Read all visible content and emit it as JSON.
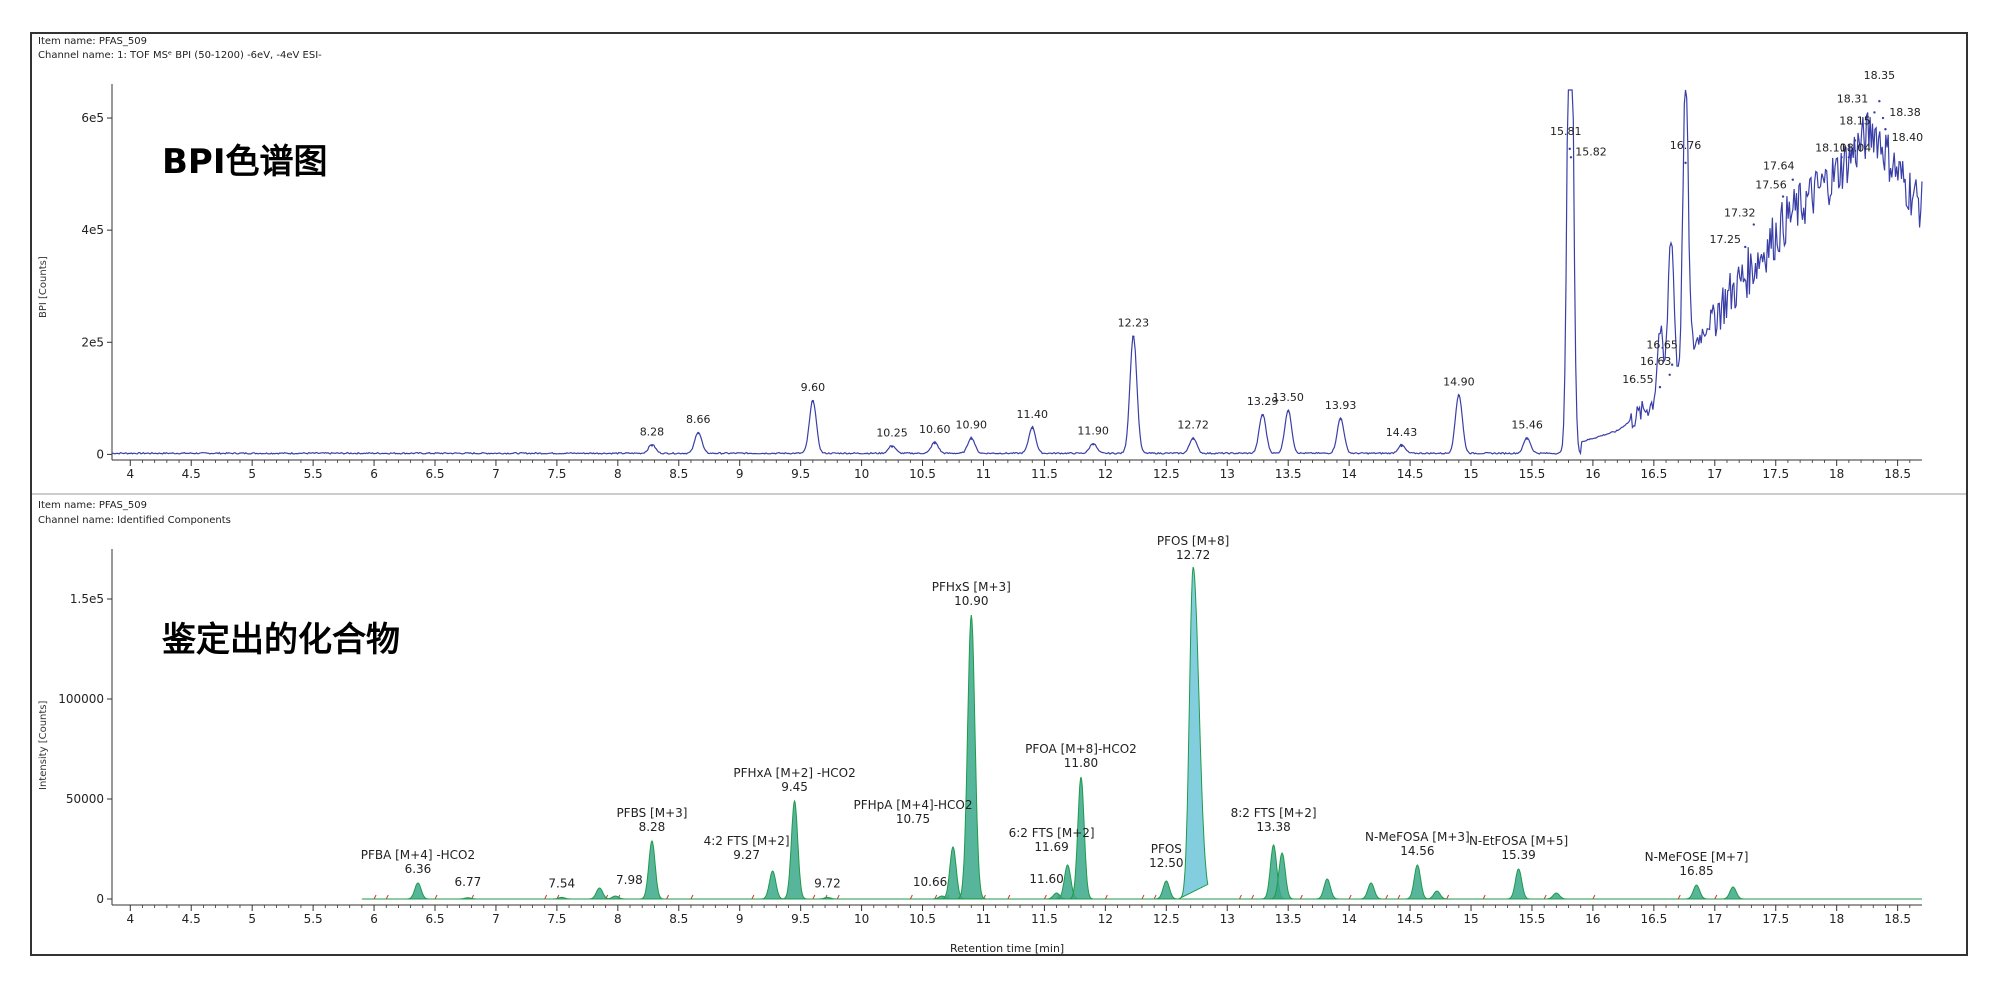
{
  "top_panel": {
    "item_name": "Item name: PFAS_509",
    "channel_name": "Channel name: 1: TOF MSᵉ BPI (50-1200) -6eV, -4eV ESI-",
    "overlay_title": "BPI色谱图",
    "ylabel": "BPI [Counts]"
  },
  "bottom_panel": {
    "item_name": "Item name: PFAS_509",
    "channel_name": "Channel name: Identified Components",
    "overlay_title": "鉴定出的化合物",
    "ylabel": "Intensity [Counts]",
    "xlabel": "Retention time [min]"
  },
  "colors": {
    "bpi_line": "#3a3fa8",
    "component_stroke": "#1f9a4a",
    "component_fill": "#3aa88a",
    "main_peak_fill": "#6cc4d8",
    "noise_red": "#d03a2a",
    "axis": "#333333"
  },
  "chart_data": [
    {
      "type": "line",
      "name": "BPI",
      "xlim": [
        3.85,
        18.7
      ],
      "ylim": [
        -10000,
        650000
      ],
      "xticks": [
        "4",
        "4.5",
        "5",
        "5.5",
        "6",
        "6.5",
        "7",
        "7.5",
        "8",
        "8.5",
        "9",
        "9.5",
        "10",
        "10.5",
        "11",
        "11.5",
        "12",
        "12.5",
        "13",
        "13.5",
        "14",
        "14.5",
        "15",
        "15.5",
        "16",
        "16.5",
        "17",
        "17.5",
        "18",
        "18.5"
      ],
      "yticks": [
        {
          "value": 0,
          "label": "0"
        },
        {
          "value": 200000,
          "label": "2e5"
        },
        {
          "value": 400000,
          "label": "4e5"
        },
        {
          "value": 600000,
          "label": "6e5"
        }
      ],
      "peaks": [
        {
          "x": 8.28,
          "y": 16000,
          "label": "8.28"
        },
        {
          "x": 8.66,
          "y": 38000,
          "label": "8.66"
        },
        {
          "x": 9.6,
          "y": 95000,
          "label": "9.60"
        },
        {
          "x": 10.25,
          "y": 14000,
          "label": "10.25"
        },
        {
          "x": 10.6,
          "y": 20000,
          "label": "10.60"
        },
        {
          "x": 10.9,
          "y": 28000,
          "label": "10.90"
        },
        {
          "x": 11.4,
          "y": 47000,
          "label": "11.40"
        },
        {
          "x": 11.9,
          "y": 18000,
          "label": "11.90"
        },
        {
          "x": 12.23,
          "y": 210000,
          "label": "12.23"
        },
        {
          "x": 12.72,
          "y": 28000,
          "label": "12.72"
        },
        {
          "x": 13.29,
          "y": 70000,
          "label": "13.29"
        },
        {
          "x": 13.5,
          "y": 77000,
          "label": "13.50"
        },
        {
          "x": 13.93,
          "y": 63000,
          "label": "13.93"
        },
        {
          "x": 14.43,
          "y": 15000,
          "label": "14.43"
        },
        {
          "x": 14.9,
          "y": 105000,
          "label": "14.90"
        },
        {
          "x": 15.46,
          "y": 28000,
          "label": "15.46"
        },
        {
          "x": 15.81,
          "y": 545000,
          "label": "15.81"
        },
        {
          "x": 15.82,
          "y": 530000,
          "label": "15.82"
        },
        {
          "x": 16.55,
          "y": 120000,
          "label": "16.55"
        },
        {
          "x": 16.63,
          "y": 142000,
          "label": "16.63"
        },
        {
          "x": 16.65,
          "y": 160000,
          "label": "16.65"
        },
        {
          "x": 16.76,
          "y": 520000,
          "label": "16.76"
        },
        {
          "x": 17.25,
          "y": 370000,
          "label": "17.25"
        },
        {
          "x": 17.32,
          "y": 410000,
          "label": "17.32"
        },
        {
          "x": 17.56,
          "y": 460000,
          "label": "17.56"
        },
        {
          "x": 17.64,
          "y": 490000,
          "label": "17.64"
        },
        {
          "x": 18.1,
          "y": 530000,
          "label": "18.10"
        },
        {
          "x": 18.04,
          "y": 530000,
          "label": "18.04"
        },
        {
          "x": 18.15,
          "y": 560000,
          "label": "18.15"
        },
        {
          "x": 18.31,
          "y": 610000,
          "label": "18.31"
        },
        {
          "x": 18.35,
          "y": 630000,
          "label": "18.35"
        },
        {
          "x": 18.38,
          "y": 600000,
          "label": "18.38"
        },
        {
          "x": 18.4,
          "y": 580000,
          "label": "18.40"
        }
      ],
      "baseline_ramp": [
        [
          15.9,
          20000
        ],
        [
          16.2,
          40000
        ],
        [
          16.5,
          90000
        ],
        [
          16.7,
          130000
        ],
        [
          16.85,
          200000
        ],
        [
          17.0,
          250000
        ],
        [
          17.3,
          330000
        ],
        [
          17.6,
          420000
        ],
        [
          18.0,
          500000
        ],
        [
          18.3,
          580000
        ],
        [
          18.5,
          500000
        ],
        [
          18.7,
          440000
        ]
      ]
    },
    {
      "type": "area",
      "name": "Identified Components",
      "xlim": [
        3.85,
        18.7
      ],
      "ylim": [
        -3000,
        172000
      ],
      "xlabel": "Retention time [min]",
      "xticks": [
        "4",
        "4.5",
        "5",
        "5.5",
        "6",
        "6.5",
        "7",
        "7.5",
        "8",
        "8.5",
        "9",
        "9.5",
        "10",
        "10.5",
        "11",
        "11.5",
        "12",
        "12.5",
        "13",
        "13.5",
        "14",
        "14.5",
        "15",
        "15.5",
        "16",
        "16.5",
        "17",
        "17.5",
        "18",
        "18.5"
      ],
      "yticks": [
        {
          "value": 0,
          "label": "0"
        },
        {
          "value": 50000,
          "label": "50000"
        },
        {
          "value": 100000,
          "label": "100000"
        },
        {
          "value": 150000,
          "label": "1.5e5"
        }
      ],
      "peaks": [
        {
          "x": 6.36,
          "y": 8000,
          "name": "PFBA [M+4] -HCO2",
          "rt": "6.36"
        },
        {
          "x": 6.77,
          "y": 600,
          "name": "",
          "rt": "6.77"
        },
        {
          "x": 7.54,
          "y": 800,
          "name": "",
          "rt": "7.54"
        },
        {
          "x": 7.85,
          "y": 5500,
          "name": "",
          "rt": ""
        },
        {
          "x": 7.98,
          "y": 1500,
          "name": "",
          "rt": "7.98"
        },
        {
          "x": 8.28,
          "y": 29000,
          "name": "PFBS [M+3]",
          "rt": "8.28"
        },
        {
          "x": 9.27,
          "y": 14000,
          "name": "4:2 FTS [M+2]",
          "rt": "9.27"
        },
        {
          "x": 9.45,
          "y": 49000,
          "name": "PFHxA [M+2] -HCO2",
          "rt": "9.45"
        },
        {
          "x": 9.72,
          "y": 800,
          "name": "",
          "rt": "9.72"
        },
        {
          "x": 10.66,
          "y": 1500,
          "name": "",
          "rt": "10.66"
        },
        {
          "x": 10.75,
          "y": 26000,
          "name": "PFHpA [M+4]-HCO2",
          "rt": "10.75"
        },
        {
          "x": 10.9,
          "y": 142000,
          "name": "PFHxS [M+3]",
          "rt": "10.90"
        },
        {
          "x": 11.6,
          "y": 3000,
          "name": "",
          "rt": "11.60"
        },
        {
          "x": 11.69,
          "y": 17000,
          "name": "6:2 FTS [M+2]",
          "rt": "11.69"
        },
        {
          "x": 11.8,
          "y": 61000,
          "name": "PFOA [M+8]-HCO2",
          "rt": "11.80"
        },
        {
          "x": 12.5,
          "y": 9000,
          "name": "PFOS",
          "rt": "12.50"
        },
        {
          "x": 12.72,
          "y": 166000,
          "name": "PFOS [M+8]",
          "rt": "12.72"
        },
        {
          "x": 13.38,
          "y": 27000,
          "name": "8:2 FTS [M+2]",
          "rt": "13.38"
        },
        {
          "x": 13.45,
          "y": 23000,
          "name": "",
          "rt": ""
        },
        {
          "x": 13.82,
          "y": 10000,
          "name": "",
          "rt": ""
        },
        {
          "x": 14.18,
          "y": 8000,
          "name": "",
          "rt": ""
        },
        {
          "x": 14.56,
          "y": 17000,
          "name": "N-MeFOSA [M+3]",
          "rt": "14.56"
        },
        {
          "x": 14.72,
          "y": 4000,
          "name": "",
          "rt": ""
        },
        {
          "x": 15.39,
          "y": 15000,
          "name": "N-EtFOSA [M+5]",
          "rt": "15.39"
        },
        {
          "x": 15.7,
          "y": 3000,
          "name": "",
          "rt": ""
        },
        {
          "x": 16.85,
          "y": 7000,
          "name": "N-MeFOSE [M+7]",
          "rt": "16.85"
        },
        {
          "x": 17.15,
          "y": 6000,
          "name": "",
          "rt": ""
        }
      ]
    }
  ]
}
